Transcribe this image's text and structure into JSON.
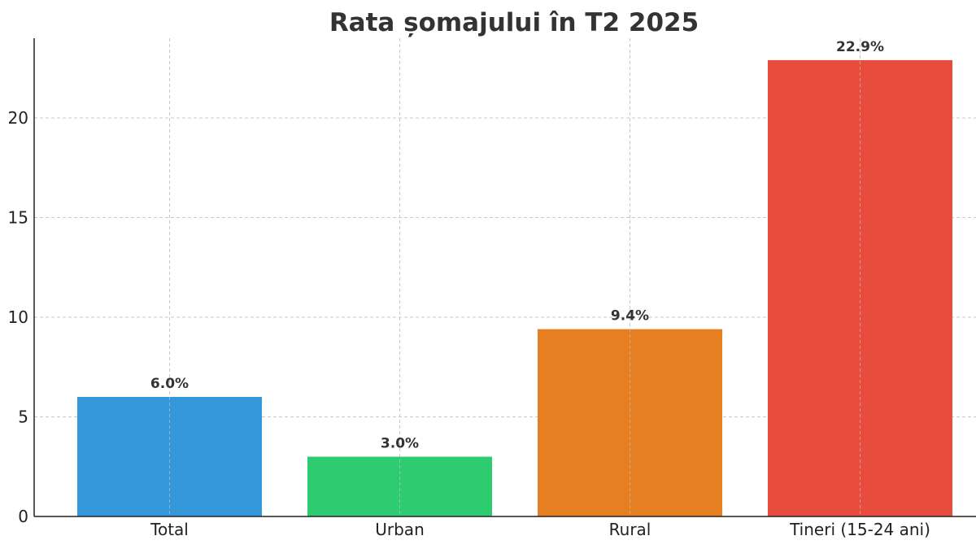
{
  "chart_data": {
    "type": "bar",
    "title": "Rata șomajului în T2 2025",
    "xlabel": "",
    "ylabel": "",
    "categories": [
      "Total",
      "Urban",
      "Rural",
      "Tineri (15-24 ani)"
    ],
    "values": [
      6.0,
      3.0,
      9.4,
      22.9
    ],
    "data_labels": [
      "6.0%",
      "3.0%",
      "9.4%",
      "22.9%"
    ],
    "colors": [
      "#3498db",
      "#2ecc71",
      "#e67e22",
      "#e74c3c"
    ],
    "ylim": [
      0,
      24
    ],
    "yticks": [
      0,
      5,
      10,
      15,
      20
    ],
    "ytick_labels": [
      "0",
      "5",
      "10",
      "15",
      "20"
    ],
    "grid": true,
    "legend": "none"
  }
}
